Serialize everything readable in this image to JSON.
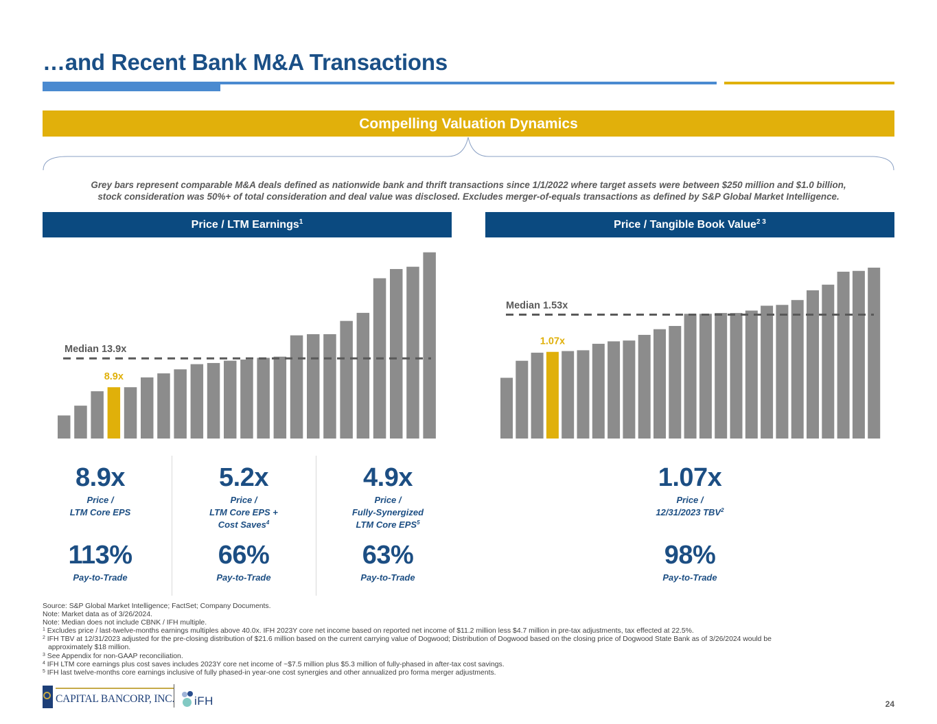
{
  "title": "…and Recent Bank M&A Transactions",
  "banner": "Compelling Valuation Dynamics",
  "description": [
    "Grey bars represent comparable M&A deals defined as nationwide bank and thrift transactions since 1/1/2022 where target assets were between $250 million and $1.0 billion,",
    "stock consideration was 50%+ of total consideration and deal value was disclosed. Excludes merger-of-equals transactions as defined by S&P Global Market Intelligence."
  ],
  "colors": {
    "navy": "#0b4a80",
    "gold": "#e1b00b",
    "bar_grey": "#8c8c8c",
    "metric_blue": "#1c4e83"
  },
  "chart_data": [
    {
      "type": "bar",
      "title": "Price / LTM Earnings",
      "title_sup": "1",
      "xlabel": "",
      "ylabel": "",
      "ylim": [
        0,
        33
      ],
      "grid": false,
      "highlight_index": 3,
      "highlight_label": "8.9x",
      "median": 13.9,
      "median_label": "Median 13.9x",
      "values": [
        4.0,
        5.7,
        8.2,
        8.9,
        8.9,
        10.6,
        11.3,
        12.0,
        12.9,
        13.1,
        13.5,
        13.7,
        14.0,
        14.2,
        17.9,
        18.1,
        18.1,
        20.4,
        21.8,
        27.8,
        29.4,
        29.8,
        32.3
      ]
    },
    {
      "type": "bar",
      "title": "Price / Tangible Book Value",
      "title_sup": "2 3",
      "xlabel": "",
      "ylabel": "",
      "ylim": [
        0,
        2.2
      ],
      "grid": false,
      "highlight_index": 3,
      "highlight_label": "1.07x",
      "median": 1.53,
      "median_label": "Median 1.53x",
      "values": [
        0.75,
        0.96,
        1.06,
        1.07,
        1.08,
        1.09,
        1.17,
        1.2,
        1.21,
        1.28,
        1.35,
        1.39,
        1.54,
        1.54,
        1.55,
        1.55,
        1.58,
        1.64,
        1.65,
        1.71,
        1.83,
        1.9,
        2.06,
        2.07,
        2.11
      ]
    }
  ],
  "metrics": [
    {
      "value": "8.9x",
      "desc_lines": [
        "Price /",
        "LTM Core EPS"
      ],
      "desc_sup": "",
      "pay": "113%",
      "pay_label": "Pay-to-Trade"
    },
    {
      "value": "5.2x",
      "desc_lines": [
        "Price /",
        "LTM Core EPS +",
        "Cost Saves"
      ],
      "desc_sup": "4",
      "pay": "66%",
      "pay_label": "Pay-to-Trade"
    },
    {
      "value": "4.9x",
      "desc_lines": [
        "Price /",
        "Fully-Synergized",
        "LTM Core EPS"
      ],
      "desc_sup": "5",
      "pay": "63%",
      "pay_label": "Pay-to-Trade"
    },
    {
      "value": "1.07x",
      "desc_lines": [
        "Price /",
        "12/31/2023 TBV"
      ],
      "desc_sup": "2",
      "pay": "98%",
      "pay_label": "Pay-to-Trade"
    }
  ],
  "footnotes": [
    {
      "sup": "",
      "text": "Source: S&P Global Market Intelligence; FactSet; Company Documents."
    },
    {
      "sup": "",
      "text": "Note: Market data as of 3/26/2024."
    },
    {
      "sup": "",
      "text": "Note: Median does not include CBNK / IFH multiple."
    },
    {
      "sup": "1",
      "text": "Excludes price / last-twelve-months earnings multiples above 40.0x. IFH 2023Y core net income based on reported net income of $11.2 million less $4.7 million in pre-tax adjustments, tax effected at 22.5%."
    },
    {
      "sup": "2",
      "text": "IFH TBV at 12/31/2023 adjusted for the pre-closing distribution of $21.6 million based on the current carrying value of Dogwood; Distribution of Dogwood based on the closing price of Dogwood State Bank as of 3/26/2024 would be"
    },
    {
      "sup": "",
      "text": "approximately $18 million.",
      "indent": true
    },
    {
      "sup": "3",
      "text": "See Appendix for non-GAAP reconciliation."
    },
    {
      "sup": "4",
      "text": "IFH LTM core earnings plus cost saves includes 2023Y core net income of ~$7.5 million plus $5.3 million of fully-phased in after-tax cost savings."
    },
    {
      "sup": "5",
      "text": "IFH last twelve-months core earnings inclusive of fully phased-in year-one cost synergies and other annualized pro forma merger adjustments."
    }
  ],
  "logos": {
    "capital_bancorp": "CAPITAL BANCORP, INC.",
    "ifh": "iFH"
  },
  "page_number": "24"
}
